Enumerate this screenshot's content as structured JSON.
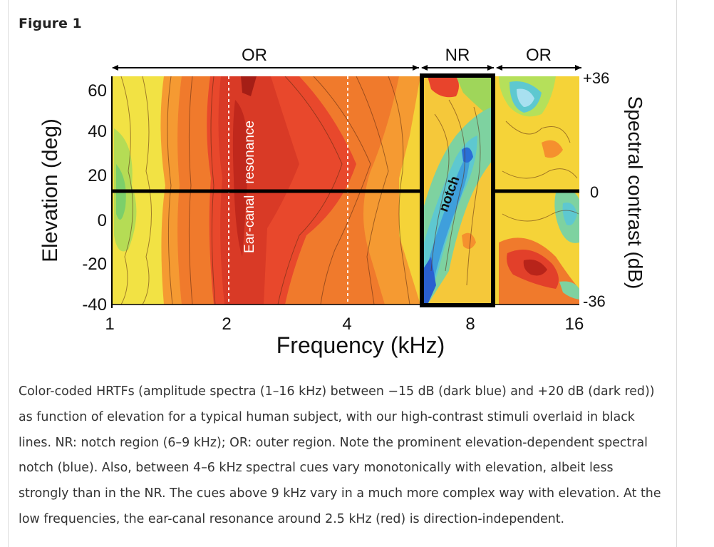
{
  "figure_label": "Figure 1",
  "figure": {
    "region_labels": {
      "left": "OR",
      "middle": "NR",
      "right": "OR"
    },
    "left_axis": {
      "title": "Elevation (deg)",
      "ticks": [
        "60",
        "40",
        "20",
        "0",
        "-20",
        "-40"
      ]
    },
    "right_axis": {
      "title": "Spectral contrast (dB)",
      "ticks": [
        "+36",
        "0",
        "-36"
      ]
    },
    "x_axis": {
      "title": "Frequency (kHz)",
      "ticks": [
        "1",
        "2",
        "4",
        "8",
        "16"
      ]
    },
    "annotations": {
      "resonance": "Ear-canal   resonance",
      "notch": "notch"
    },
    "colors": {
      "dark_red": "#c0281c",
      "red": "#e8442c",
      "orange": "#f58a2e",
      "yellow": "#f5d338",
      "green": "#9fd65a",
      "cyan": "#5ec8d0",
      "blue": "#2a6fd6"
    }
  },
  "caption": "Color-coded HRTFs (amplitude spectra (1–16 kHz) between −15 dB (dark blue) and +20 dB (dark red)) as function of elevation for a typical human subject, with our high-contrast stimuli overlaid in black lines. NR: notch region (6–9 kHz); OR: outer region. Note the prominent elevation-dependent spectral notch (blue). Also, between 4–6 kHz spectral cues vary monotonically with elevation, albeit less strongly than in the NR. The cues above 9 kHz vary in a much more complex way with elevation. At the low frequencies, the ear-canal resonance around 2.5 kHz (red) is direction-independent."
}
